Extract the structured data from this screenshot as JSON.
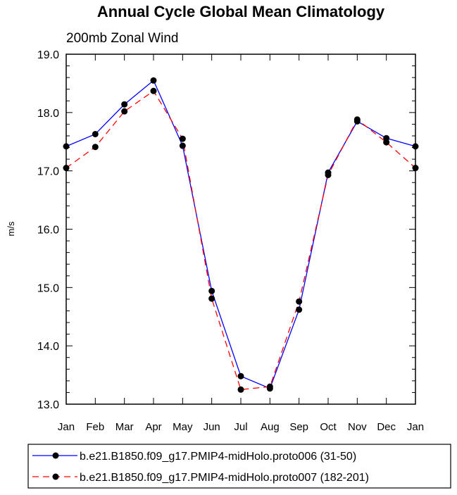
{
  "chart_data": {
    "type": "line",
    "title": "Annual Cycle Global Mean Climatology",
    "subtitle": "200mb Zonal Wind",
    "xlabel": "",
    "ylabel": "m/s",
    "categories": [
      "Jan",
      "Feb",
      "Mar",
      "Apr",
      "May",
      "Jun",
      "Jul",
      "Aug",
      "Sep",
      "Oct",
      "Nov",
      "Dec",
      "Jan"
    ],
    "ylim": [
      13.0,
      19.0
    ],
    "yticks": [
      "13.0",
      "14.0",
      "15.0",
      "16.0",
      "17.0",
      "18.0",
      "19.0"
    ],
    "grid": false,
    "legend_position": "bottom",
    "series": [
      {
        "name": "b.e21.B1850.f09_g17.PMIP4-midHolo.proto006 (31-50)",
        "color": "#0000ff",
        "dash": "solid",
        "values": [
          17.42,
          17.63,
          18.14,
          18.55,
          17.43,
          14.94,
          13.48,
          13.27,
          14.62,
          16.97,
          17.85,
          17.56,
          17.42
        ]
      },
      {
        "name": "b.e21.B1850.f09_g17.PMIP4-midHolo.proto007 (182-201)",
        "color": "#ff0000",
        "dash": "dashed",
        "values": [
          17.05,
          17.41,
          18.02,
          18.37,
          17.55,
          14.81,
          13.25,
          13.3,
          14.76,
          16.93,
          17.88,
          17.49,
          17.05
        ]
      }
    ]
  }
}
